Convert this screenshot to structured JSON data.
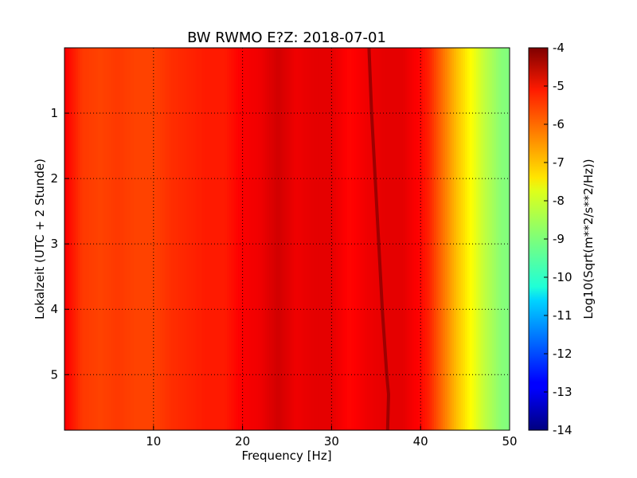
{
  "chart_data": {
    "type": "heatmap",
    "title": "BW RWMO E?Z: 2018-07-01",
    "xlabel": "Frequency [Hz]",
    "ylabel": "Lokalzeit (UTC + 2 Stunde)",
    "xlim": [
      0,
      50
    ],
    "ylim": [
      5.85,
      0
    ],
    "x_ticks": [
      "10",
      "20",
      "30",
      "40",
      "50"
    ],
    "y_ticks": [
      "1",
      "2",
      "3",
      "4",
      "5"
    ],
    "grid": true,
    "colormap": "jet",
    "colorbar": {
      "label": "Log10(Sqrt(m**2/s**2/Hz))",
      "range": [
        -14,
        -4
      ],
      "ticks": [
        "-4",
        "-5",
        "-6",
        "-7",
        "-8",
        "-9",
        "-10",
        "-11",
        "-12",
        "-13",
        "-14"
      ]
    },
    "spectral_profile": {
      "frequency_hz": [
        0,
        2,
        4,
        6,
        8,
        10,
        12,
        14,
        16,
        18,
        20,
        22,
        24,
        26,
        28,
        30,
        32,
        34,
        36,
        38,
        40,
        41,
        42,
        43,
        44,
        45,
        46,
        47,
        48,
        49,
        50
      ],
      "log_amplitude": [
        -5.2,
        -5.8,
        -5.9,
        -5.8,
        -5.9,
        -5.9,
        -5.7,
        -5.6,
        -5.5,
        -5.5,
        -5.2,
        -5.1,
        -4.8,
        -5.1,
        -5.0,
        -5.0,
        -5.3,
        -5.1,
        -5.0,
        -5.0,
        -5.3,
        -5.6,
        -6.1,
        -6.6,
        -7.1,
        -7.5,
        -7.9,
        -8.3,
        -8.6,
        -8.9,
        -9.0
      ]
    },
    "narrowband_line": {
      "time_h": [
        0,
        1,
        2,
        3,
        4,
        5,
        5.3,
        5.85
      ],
      "frequency_hz": [
        34.2,
        34.5,
        34.9,
        35.3,
        35.7,
        36.2,
        36.4,
        36.3
      ],
      "log_amplitude": -4.3
    }
  }
}
